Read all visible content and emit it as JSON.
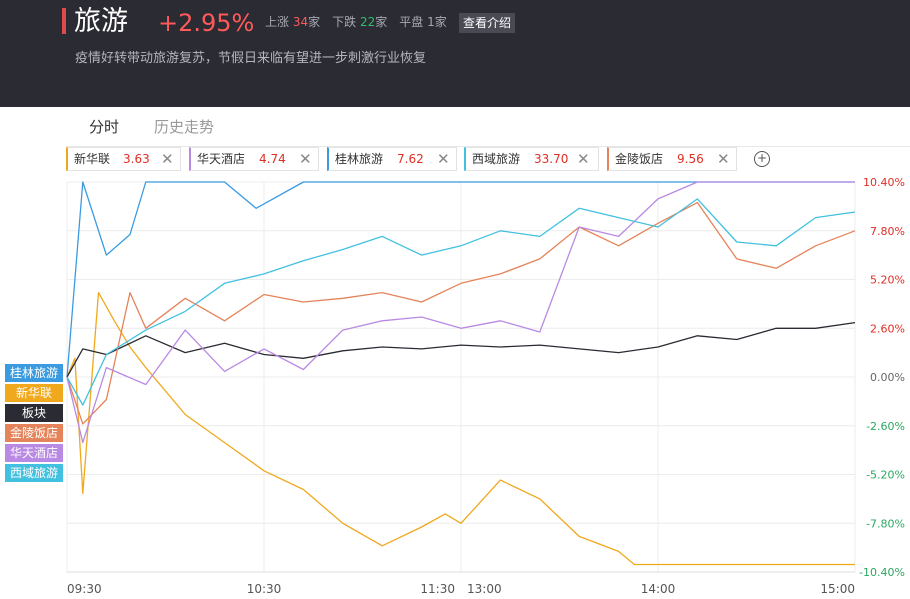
{
  "header": {
    "title": "旅游",
    "change_pct": "+2.95%",
    "up_label": "上涨",
    "up_count": "34",
    "up_unit": "家",
    "down_label": "下跌",
    "down_count": "22",
    "down_unit": "家",
    "flat_label": "平盘",
    "flat_count": "1",
    "flat_unit": "家",
    "intro_button": "查看介绍",
    "description": "疫情好转带动旅游复苏，节假日来临有望进一步刺激行业恢复"
  },
  "tabs": [
    "分时",
    "历史走势"
  ],
  "stock_tags": [
    {
      "name": "新华联",
      "value": "3.63",
      "color": "#f0a81c"
    },
    {
      "name": "华天酒店",
      "value": "4.74",
      "color": "#b98ae3"
    },
    {
      "name": "桂林旅游",
      "value": "7.62",
      "color": "#3b9be0"
    },
    {
      "name": "西域旅游",
      "value": "33.70",
      "color": "#42c0e0"
    },
    {
      "name": "金陵饭店",
      "value": "9.56",
      "color": "#e5835a"
    }
  ],
  "legend": [
    {
      "label": "桂林旅游",
      "color": "#3b9be0"
    },
    {
      "label": "新华联",
      "color": "#f0a81c"
    },
    {
      "label": "板块",
      "color": "#2b2b33"
    },
    {
      "label": "金陵饭店",
      "color": "#e5835a"
    },
    {
      "label": "华天酒店",
      "color": "#b98ae3"
    },
    {
      "label": "西域旅游",
      "color": "#42c0e0"
    }
  ],
  "chart_data": {
    "type": "line",
    "x_ticks": [
      "09:30",
      "10:30",
      "11:30",
      "13:00",
      "14:00",
      "15:00"
    ],
    "y_ticks": [
      "10.40%",
      "7.80%",
      "5.20%",
      "2.60%",
      "0.00%",
      "-2.60%",
      "-5.20%",
      "-7.80%",
      "-10.40%"
    ],
    "ylim": [
      -10.4,
      10.4
    ],
    "positive_color": "#e02e24",
    "negative_color": "#2aa760",
    "series": [
      {
        "name": "桂林旅游",
        "color": "#3b9be0",
        "x": [
          0,
          0.02,
          0.05,
          0.08,
          0.1,
          0.12,
          0.15,
          0.2,
          0.24,
          0.3,
          0.4,
          0.5,
          0.6,
          0.7,
          0.8,
          0.9,
          1.0
        ],
        "y": [
          0,
          10.4,
          6.5,
          7.6,
          10.4,
          10.4,
          10.4,
          10.4,
          9.0,
          10.4,
          10.4,
          10.4,
          10.4,
          10.4,
          10.4,
          10.4,
          10.4
        ]
      },
      {
        "name": "新华联",
        "color": "#f0a81c",
        "x": [
          0,
          0.01,
          0.02,
          0.04,
          0.06,
          0.08,
          0.1,
          0.15,
          0.2,
          0.25,
          0.3,
          0.35,
          0.4,
          0.45,
          0.48,
          0.5,
          0.55,
          0.6,
          0.65,
          0.7,
          0.72,
          0.74,
          0.76,
          0.78,
          0.8,
          0.82,
          0.83,
          0.84,
          0.86,
          1.0
        ],
        "y": [
          0,
          1.0,
          -6.2,
          4.5,
          3.0,
          1.6,
          0.5,
          -2.0,
          -3.5,
          -5.0,
          -6.0,
          -7.8,
          -9.0,
          -8.0,
          -7.3,
          -7.8,
          -5.5,
          -6.5,
          -8.5,
          -9.3,
          -10.0,
          -10.0,
          -10.0,
          -10.0,
          -10.0,
          -10.0,
          -10.0,
          -10.0,
          -10.0,
          -10.0
        ]
      },
      {
        "name": "板块",
        "color": "#2b2b33",
        "x": [
          0,
          0.02,
          0.05,
          0.1,
          0.15,
          0.2,
          0.25,
          0.3,
          0.35,
          0.4,
          0.45,
          0.5,
          0.55,
          0.6,
          0.65,
          0.7,
          0.75,
          0.8,
          0.85,
          0.9,
          0.95,
          1.0
        ],
        "y": [
          0,
          1.5,
          1.2,
          2.2,
          1.3,
          1.8,
          1.2,
          1.0,
          1.4,
          1.6,
          1.5,
          1.7,
          1.6,
          1.7,
          1.5,
          1.3,
          1.6,
          2.2,
          2.0,
          2.6,
          2.6,
          2.9
        ]
      },
      {
        "name": "金陵饭店",
        "color": "#e5835a",
        "x": [
          0,
          0.02,
          0.05,
          0.08,
          0.1,
          0.15,
          0.2,
          0.25,
          0.3,
          0.35,
          0.4,
          0.45,
          0.5,
          0.55,
          0.6,
          0.65,
          0.7,
          0.75,
          0.8,
          0.85,
          0.9,
          0.95,
          1.0
        ],
        "y": [
          0,
          -2.5,
          -1.2,
          4.5,
          2.6,
          4.2,
          3.0,
          4.4,
          4.0,
          4.2,
          4.5,
          4.0,
          5.0,
          5.5,
          6.3,
          8.0,
          7.0,
          8.2,
          9.3,
          6.3,
          5.8,
          7.0,
          7.8
        ]
      },
      {
        "name": "华天酒店",
        "color": "#b98ae3",
        "x": [
          0,
          0.02,
          0.05,
          0.1,
          0.15,
          0.2,
          0.25,
          0.3,
          0.35,
          0.4,
          0.45,
          0.5,
          0.55,
          0.6,
          0.65,
          0.7,
          0.75,
          0.8,
          0.85,
          0.9,
          0.95,
          1.0
        ],
        "y": [
          0,
          -3.5,
          0.5,
          -0.4,
          2.5,
          0.3,
          1.5,
          0.4,
          2.5,
          3.0,
          3.2,
          2.6,
          3.0,
          2.4,
          8.0,
          7.5,
          9.5,
          10.4,
          10.4,
          10.4,
          10.4,
          10.4
        ]
      },
      {
        "name": "西域旅游",
        "color": "#42c0e0",
        "x": [
          0,
          0.02,
          0.05,
          0.1,
          0.15,
          0.2,
          0.25,
          0.3,
          0.35,
          0.4,
          0.45,
          0.5,
          0.55,
          0.6,
          0.65,
          0.7,
          0.75,
          0.8,
          0.85,
          0.9,
          0.95,
          1.0
        ],
        "y": [
          0,
          -1.5,
          1.2,
          2.5,
          3.5,
          5.0,
          5.5,
          6.2,
          6.8,
          7.5,
          6.5,
          7.0,
          7.8,
          7.5,
          9.0,
          8.5,
          8.0,
          9.5,
          7.2,
          7.0,
          8.5,
          8.8
        ]
      }
    ],
    "grid": true
  }
}
